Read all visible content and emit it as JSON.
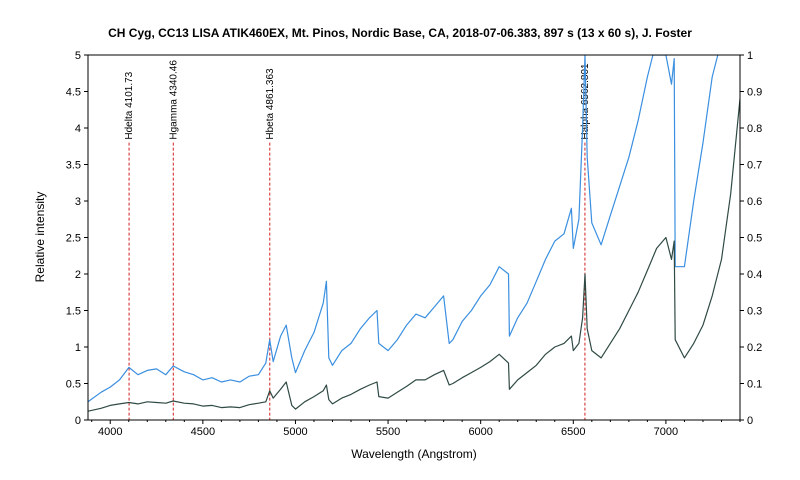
{
  "chart_data": {
    "type": "line",
    "title": "CH Cyg, CC13 LISA ATIK460EX, Mt. Pinos, Nordic Base, CA,  2018-07-06.383, 897 s (13 x 60 s),  J. Foster",
    "xlabel": "Wavelength (Angstrom)",
    "ylabel": "Relative intensity",
    "xlim": [
      3880,
      7400
    ],
    "ylim": [
      0,
      5
    ],
    "y2lim": [
      0,
      1
    ],
    "x_ticks": [
      4000,
      4500,
      5000,
      5500,
      6000,
      6500,
      7000
    ],
    "y_ticks": [
      0,
      0.5,
      1,
      1.5,
      2,
      2.5,
      3,
      3.5,
      4,
      4.5,
      5
    ],
    "y2_ticks": [
      0,
      0.1,
      0.2,
      0.3,
      0.4,
      0.5,
      0.6,
      0.7,
      0.8,
      0.9,
      1
    ],
    "grid": false,
    "series": [
      {
        "axis": "left",
        "color": "#3a8fe0",
        "points": [
          [
            3880,
            0.25
          ],
          [
            3950,
            0.38
          ],
          [
            4000,
            0.45
          ],
          [
            4050,
            0.55
          ],
          [
            4101,
            0.72
          ],
          [
            4150,
            0.62
          ],
          [
            4200,
            0.68
          ],
          [
            4250,
            0.7
          ],
          [
            4300,
            0.62
          ],
          [
            4340,
            0.74
          ],
          [
            4400,
            0.66
          ],
          [
            4450,
            0.62
          ],
          [
            4500,
            0.55
          ],
          [
            4550,
            0.58
          ],
          [
            4600,
            0.52
          ],
          [
            4650,
            0.55
          ],
          [
            4700,
            0.52
          ],
          [
            4750,
            0.6
          ],
          [
            4800,
            0.62
          ],
          [
            4840,
            0.78
          ],
          [
            4861,
            1.1
          ],
          [
            4880,
            0.8
          ],
          [
            4920,
            1.15
          ],
          [
            4950,
            1.3
          ],
          [
            4980,
            0.85
          ],
          [
            5000,
            0.65
          ],
          [
            5050,
            0.95
          ],
          [
            5100,
            1.2
          ],
          [
            5150,
            1.6
          ],
          [
            5167,
            1.9
          ],
          [
            5180,
            0.85
          ],
          [
            5200,
            0.75
          ],
          [
            5250,
            0.95
          ],
          [
            5300,
            1.05
          ],
          [
            5350,
            1.25
          ],
          [
            5400,
            1.4
          ],
          [
            5440,
            1.5
          ],
          [
            5450,
            1.05
          ],
          [
            5500,
            0.95
          ],
          [
            5550,
            1.1
          ],
          [
            5600,
            1.3
          ],
          [
            5650,
            1.45
          ],
          [
            5700,
            1.4
          ],
          [
            5750,
            1.55
          ],
          [
            5800,
            1.7
          ],
          [
            5830,
            1.05
          ],
          [
            5850,
            1.1
          ],
          [
            5900,
            1.35
          ],
          [
            5950,
            1.5
          ],
          [
            6000,
            1.7
          ],
          [
            6050,
            1.85
          ],
          [
            6100,
            2.1
          ],
          [
            6150,
            2.0
          ],
          [
            6155,
            1.15
          ],
          [
            6200,
            1.4
          ],
          [
            6250,
            1.6
          ],
          [
            6300,
            1.9
          ],
          [
            6350,
            2.2
          ],
          [
            6400,
            2.45
          ],
          [
            6450,
            2.55
          ],
          [
            6490,
            2.9
          ],
          [
            6500,
            2.35
          ],
          [
            6530,
            2.75
          ],
          [
            6550,
            4.0
          ],
          [
            6563,
            5.0
          ],
          [
            6575,
            3.6
          ],
          [
            6600,
            2.7
          ],
          [
            6650,
            2.4
          ],
          [
            6700,
            2.8
          ],
          [
            6750,
            3.2
          ],
          [
            6800,
            3.6
          ],
          [
            6850,
            4.1
          ],
          [
            6900,
            4.7
          ],
          [
            6930,
            5.0
          ],
          [
            7000,
            5.0
          ],
          [
            7030,
            4.6
          ],
          [
            7045,
            4.95
          ],
          [
            7050,
            2.1
          ],
          [
            7100,
            2.1
          ],
          [
            7150,
            3.0
          ],
          [
            7200,
            3.8
          ],
          [
            7250,
            4.7
          ],
          [
            7280,
            5.0
          ]
        ]
      },
      {
        "axis": "left",
        "color": "#2f4a44",
        "points": [
          [
            3880,
            0.12
          ],
          [
            3950,
            0.16
          ],
          [
            4000,
            0.2
          ],
          [
            4050,
            0.22
          ],
          [
            4101,
            0.24
          ],
          [
            4150,
            0.22
          ],
          [
            4200,
            0.25
          ],
          [
            4250,
            0.24
          ],
          [
            4300,
            0.23
          ],
          [
            4340,
            0.26
          ],
          [
            4400,
            0.23
          ],
          [
            4450,
            0.22
          ],
          [
            4500,
            0.19
          ],
          [
            4550,
            0.2
          ],
          [
            4600,
            0.17
          ],
          [
            4650,
            0.18
          ],
          [
            4700,
            0.17
          ],
          [
            4750,
            0.21
          ],
          [
            4800,
            0.23
          ],
          [
            4840,
            0.25
          ],
          [
            4861,
            0.4
          ],
          [
            4880,
            0.3
          ],
          [
            4920,
            0.42
          ],
          [
            4950,
            0.52
          ],
          [
            4980,
            0.2
          ],
          [
            5000,
            0.15
          ],
          [
            5050,
            0.25
          ],
          [
            5100,
            0.32
          ],
          [
            5150,
            0.4
          ],
          [
            5167,
            0.48
          ],
          [
            5180,
            0.28
          ],
          [
            5200,
            0.22
          ],
          [
            5250,
            0.3
          ],
          [
            5300,
            0.35
          ],
          [
            5350,
            0.42
          ],
          [
            5400,
            0.48
          ],
          [
            5440,
            0.52
          ],
          [
            5450,
            0.32
          ],
          [
            5500,
            0.3
          ],
          [
            5550,
            0.38
          ],
          [
            5600,
            0.46
          ],
          [
            5650,
            0.55
          ],
          [
            5700,
            0.55
          ],
          [
            5750,
            0.62
          ],
          [
            5800,
            0.68
          ],
          [
            5830,
            0.48
          ],
          [
            5850,
            0.5
          ],
          [
            5900,
            0.58
          ],
          [
            5950,
            0.65
          ],
          [
            6000,
            0.72
          ],
          [
            6050,
            0.8
          ],
          [
            6100,
            0.9
          ],
          [
            6150,
            0.78
          ],
          [
            6155,
            0.42
          ],
          [
            6200,
            0.55
          ],
          [
            6250,
            0.65
          ],
          [
            6300,
            0.75
          ],
          [
            6350,
            0.9
          ],
          [
            6400,
            1.0
          ],
          [
            6450,
            1.05
          ],
          [
            6490,
            1.15
          ],
          [
            6500,
            0.95
          ],
          [
            6530,
            1.05
          ],
          [
            6550,
            1.4
          ],
          [
            6563,
            2.0
          ],
          [
            6575,
            1.25
          ],
          [
            6600,
            0.95
          ],
          [
            6650,
            0.85
          ],
          [
            6700,
            1.05
          ],
          [
            6750,
            1.25
          ],
          [
            6800,
            1.5
          ],
          [
            6850,
            1.75
          ],
          [
            6900,
            2.05
          ],
          [
            6950,
            2.35
          ],
          [
            7000,
            2.5
          ],
          [
            7030,
            2.2
          ],
          [
            7045,
            2.45
          ],
          [
            7050,
            1.1
          ],
          [
            7100,
            0.85
          ],
          [
            7150,
            1.05
          ],
          [
            7200,
            1.3
          ],
          [
            7250,
            1.7
          ],
          [
            7300,
            2.2
          ],
          [
            7350,
            3.1
          ],
          [
            7400,
            4.4
          ]
        ]
      }
    ],
    "vlines": [
      {
        "x": 4101.73,
        "label": "Hdelta 4101.73"
      },
      {
        "x": 4340.46,
        "label": "Hgamma 4340.46"
      },
      {
        "x": 4861.363,
        "label": "Hbeta 4861.363"
      },
      {
        "x": 6562.801,
        "label": "Halpha 6562.801"
      }
    ],
    "vline_color": "#d42020"
  }
}
